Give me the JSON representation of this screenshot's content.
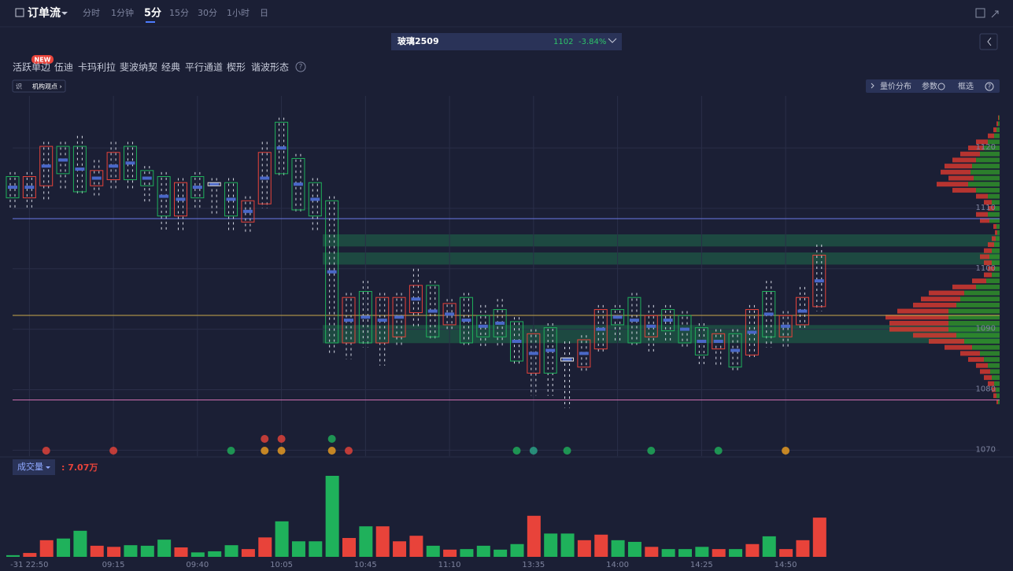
{
  "header": {
    "title": "订单流",
    "tabs": [
      "分时",
      "1分钟",
      "5分",
      "15分",
      "30分",
      "1小时",
      "日"
    ],
    "active_tab": 2
  },
  "instrument": {
    "name": "玻璃2509",
    "price": "1102",
    "change": "-3.84%"
  },
  "indicators": {
    "badge": "NEW",
    "items": [
      "活跃单边",
      "伍迪",
      "卡玛利拉",
      "斐波纳契",
      "经典",
      "平行通道",
      "楔形",
      "谐波形态"
    ],
    "help": "?"
  },
  "tag": {
    "icon": "识",
    "label": "机构观点 ›"
  },
  "toolbar": {
    "items": [
      "量价分布",
      "参数",
      "框选"
    ],
    "help": "?"
  },
  "chart_data": {
    "type": "candlestick",
    "x": [
      null,
      "-31 22:50",
      null,
      null,
      null,
      null,
      "09:15",
      null,
      null,
      null,
      null,
      "09:40",
      null,
      null,
      null,
      null,
      "10:05",
      null,
      null,
      null,
      null,
      "10:45",
      null,
      null,
      null,
      null,
      "11:10",
      null,
      null,
      null,
      null,
      "13:35",
      null,
      null,
      null,
      null,
      "14:00",
      null,
      null,
      null,
      null,
      "14:25",
      null,
      null,
      null,
      null,
      "14:50",
      null,
      null
    ],
    "open": [
      1115,
      1112,
      1114,
      1120,
      1120,
      1114,
      1115,
      1120,
      1116,
      1115,
      1109,
      1115,
      1114,
      1114,
      1108,
      1111,
      1124,
      1118,
      1114,
      1111,
      1088,
      1096,
      1088,
      1089,
      1093,
      1097,
      1091,
      1095,
      1092,
      1093,
      1091,
      1083,
      1090,
      1085,
      1084,
      1087,
      1093,
      1095,
      1089,
      1093,
      1092,
      1090,
      1087,
      1089,
      1086,
      1096,
      1089,
      1091,
      1094
    ],
    "close": [
      1112,
      1115,
      1120,
      1116,
      1113,
      1116,
      1119,
      1115,
      1114,
      1109,
      1114,
      1112,
      1114,
      1109,
      1111,
      1119,
      1116,
      1110,
      1109,
      1088,
      1095,
      1088,
      1095,
      1095,
      1097,
      1089,
      1094,
      1088,
      1089,
      1089,
      1085,
      1089,
      1083,
      1085,
      1088,
      1093,
      1091,
      1088,
      1092,
      1090,
      1088,
      1086,
      1089,
      1084,
      1093,
      1089,
      1092,
      1095,
      1102
    ],
    "high": [
      1116,
      1116,
      1121,
      1121,
      1122,
      1118,
      1121,
      1121,
      1117,
      1116,
      1115,
      1116,
      1115,
      1115,
      1112,
      1121,
      1125,
      1119,
      1115,
      1112,
      1096,
      1098,
      1096,
      1096,
      1100,
      1098,
      1095,
      1096,
      1094,
      1095,
      1092,
      1090,
      1091,
      1088,
      1089,
      1094,
      1094,
      1096,
      1094,
      1094,
      1093,
      1091,
      1090,
      1090,
      1094,
      1098,
      1093,
      1097,
      1104
    ],
    "low": [
      1110,
      1110,
      1111,
      1113,
      1112,
      1112,
      1113,
      1113,
      1111,
      1106,
      1106,
      1110,
      1109,
      1106,
      1106,
      1110,
      1115,
      1109,
      1106,
      1086,
      1085,
      1087,
      1084,
      1087,
      1090,
      1088,
      1090,
      1087,
      1087,
      1087,
      1084,
      1079,
      1079,
      1077,
      1083,
      1086,
      1088,
      1087,
      1086,
      1088,
      1087,
      1084,
      1084,
      1083,
      1085,
      1087,
      1087,
      1090,
      1093
    ],
    "ylim": [
      1069,
      1128.6
    ],
    "yticks": [
      1070,
      1080,
      1090,
      1100,
      1110,
      1120
    ],
    "grid": true,
    "up_color": "#e8433a",
    "down_color": "#1fb15b",
    "flat_color": "#e6e6e6",
    "levels": [
      {
        "value": 1108.3,
        "color": "#6b78e8"
      },
      {
        "value": 1092.3,
        "color": "#c9a94a"
      },
      {
        "value": 1078.3,
        "color": "#d070b0"
      }
    ],
    "zones": [
      [
        1103.7,
        1105.7
      ],
      [
        1100.7,
        1102.7
      ],
      [
        1087.7,
        1090.7
      ]
    ],
    "profile": {
      "prices": [
        1125,
        1124,
        1123,
        1122,
        1121,
        1120,
        1119,
        1118,
        1117,
        1116,
        1115,
        1114,
        1113,
        1112,
        1111,
        1110,
        1109,
        1108,
        1107,
        1106,
        1105,
        1104,
        1103,
        1102,
        1101,
        1100,
        1099,
        1098,
        1097,
        1096,
        1095,
        1094,
        1093,
        1092,
        1091,
        1090,
        1089,
        1088,
        1087,
        1086,
        1085,
        1084,
        1083,
        1082,
        1081,
        1080,
        1079,
        1078
      ],
      "buy": [
        1,
        2,
        4,
        8,
        15,
        20,
        25,
        30,
        35,
        38,
        32,
        40,
        30,
        15,
        10,
        8,
        15,
        12,
        4,
        3,
        5,
        8,
        10,
        12,
        10,
        8,
        10,
        18,
        30,
        45,
        50,
        55,
        65,
        80,
        75,
        75,
        55,
        45,
        35,
        25,
        20,
        15,
        13,
        10,
        8,
        5,
        4,
        2
      ],
      "sell": [
        1,
        2,
        4,
        7,
        15,
        20,
        25,
        30,
        35,
        37,
        33,
        40,
        30,
        15,
        10,
        7,
        15,
        13,
        4,
        3,
        5,
        7,
        10,
        13,
        10,
        7,
        10,
        17,
        30,
        45,
        50,
        55,
        65,
        65,
        65,
        65,
        55,
        45,
        35,
        25,
        20,
        15,
        12,
        10,
        7,
        5,
        4,
        2
      ]
    },
    "volume": {
      "label": "成交量",
      "readout": ": 7.07万",
      "values": [
        0.3,
        0.7,
        3.0,
        3.3,
        4.7,
        2.0,
        1.8,
        2.1,
        2.0,
        3.1,
        1.7,
        0.8,
        1.0,
        2.1,
        1.4,
        3.5,
        6.4,
        2.8,
        2.8,
        14.6,
        3.4,
        5.5,
        5.5,
        2.8,
        3.8,
        2.0,
        1.3,
        1.4,
        2.0,
        1.3,
        2.3,
        7.4,
        4.2,
        4.2,
        3.0,
        4.0,
        3.0,
        2.7,
        1.8,
        1.4,
        1.4,
        1.8,
        1.4,
        1.4,
        2.3,
        3.7,
        1.4,
        3.0,
        7.07
      ]
    }
  }
}
